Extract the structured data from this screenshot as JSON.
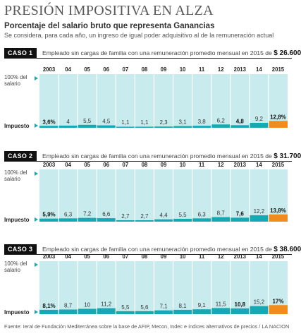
{
  "title": "PRESIÓN IMPOSITIVA EN ALZA",
  "subtitle": "Porcentaje del salario bruto que representa Ganancias",
  "description": "Se considera, para cada año, un ingreso de igual poder adquisitivo al de la remuneración actual",
  "labels": {
    "top": "100% del salario",
    "bottom": "Impuesto"
  },
  "colors": {
    "panel": "#c8ebee",
    "fill": "#17a9b3",
    "highlight": "#f08c1e",
    "grid": "#ffffff"
  },
  "years": [
    "2003",
    "04",
    "05",
    "06",
    "07",
    "08",
    "09",
    "10",
    "11",
    "12",
    "2013",
    "14",
    "2015"
  ],
  "cases": [
    {
      "badge": "CASO 1",
      "desc": "Empleado sin cargas de familia con una remuneración promedio mensual en 2015 de",
      "amount": "$ 26.600"
    },
    {
      "badge": "CASO 2",
      "desc": "Empleado sin cargas de familia con una remuneración promedio mensual en 2015 de",
      "amount": "$ 31.700"
    },
    {
      "badge": "CASO 3",
      "desc": "Empleado sin cargas de familia con una remuneración promedio mensual en 2015 de",
      "amount": "$ 38.600"
    }
  ],
  "chart_data": [
    {
      "type": "bar",
      "categories": [
        "2003",
        "04",
        "05",
        "06",
        "07",
        "08",
        "09",
        "10",
        "11",
        "12",
        "2013",
        "14",
        "2015"
      ],
      "values": [
        3.6,
        4,
        5.5,
        4.5,
        1.1,
        1.1,
        2.3,
        3.1,
        3.8,
        6.2,
        4.8,
        9.2,
        12.8
      ],
      "labels": [
        "3,6%",
        "4",
        "5,5",
        "4,5",
        "1,1",
        "1,1",
        "2,3",
        "3,1",
        "3,8",
        "6,2",
        "4,8",
        "9,2",
        "12,8%"
      ],
      "ylim": [
        0,
        100
      ]
    },
    {
      "type": "bar",
      "categories": [
        "2003",
        "04",
        "05",
        "06",
        "07",
        "08",
        "09",
        "10",
        "11",
        "12",
        "2013",
        "14",
        "2015"
      ],
      "values": [
        5.9,
        6.3,
        7.2,
        6.6,
        2.7,
        2.7,
        4.4,
        5.5,
        6.3,
        8.7,
        7.6,
        12.2,
        13.8
      ],
      "labels": [
        "5,9%",
        "6,3",
        "7,2",
        "6,6",
        "2,7",
        "2,7",
        "4,4",
        "5,5",
        "6,3",
        "8,7",
        "7,6",
        "12,2",
        "13,8%"
      ],
      "ylim": [
        0,
        100
      ]
    },
    {
      "type": "bar",
      "categories": [
        "2003",
        "04",
        "05",
        "06",
        "07",
        "08",
        "09",
        "10",
        "11",
        "12",
        "2013",
        "14",
        "2015"
      ],
      "values": [
        8.1,
        8.7,
        10,
        11.2,
        5.5,
        5.6,
        7.1,
        8.1,
        9.1,
        11.5,
        10.8,
        15.2,
        17
      ],
      "labels": [
        "8,1%",
        "8,7",
        "10",
        "11,2",
        "5,5",
        "5,6",
        "7,1",
        "8,1",
        "9,1",
        "11,5",
        "10,8",
        "15,2",
        "17%"
      ],
      "ylim": [
        0,
        100
      ]
    }
  ],
  "source": "Fuente: Ieral de Fundación Mediterránea sobre la base de AFIP, Mecon, Indec e índices alternativos de precios / LA NACION"
}
